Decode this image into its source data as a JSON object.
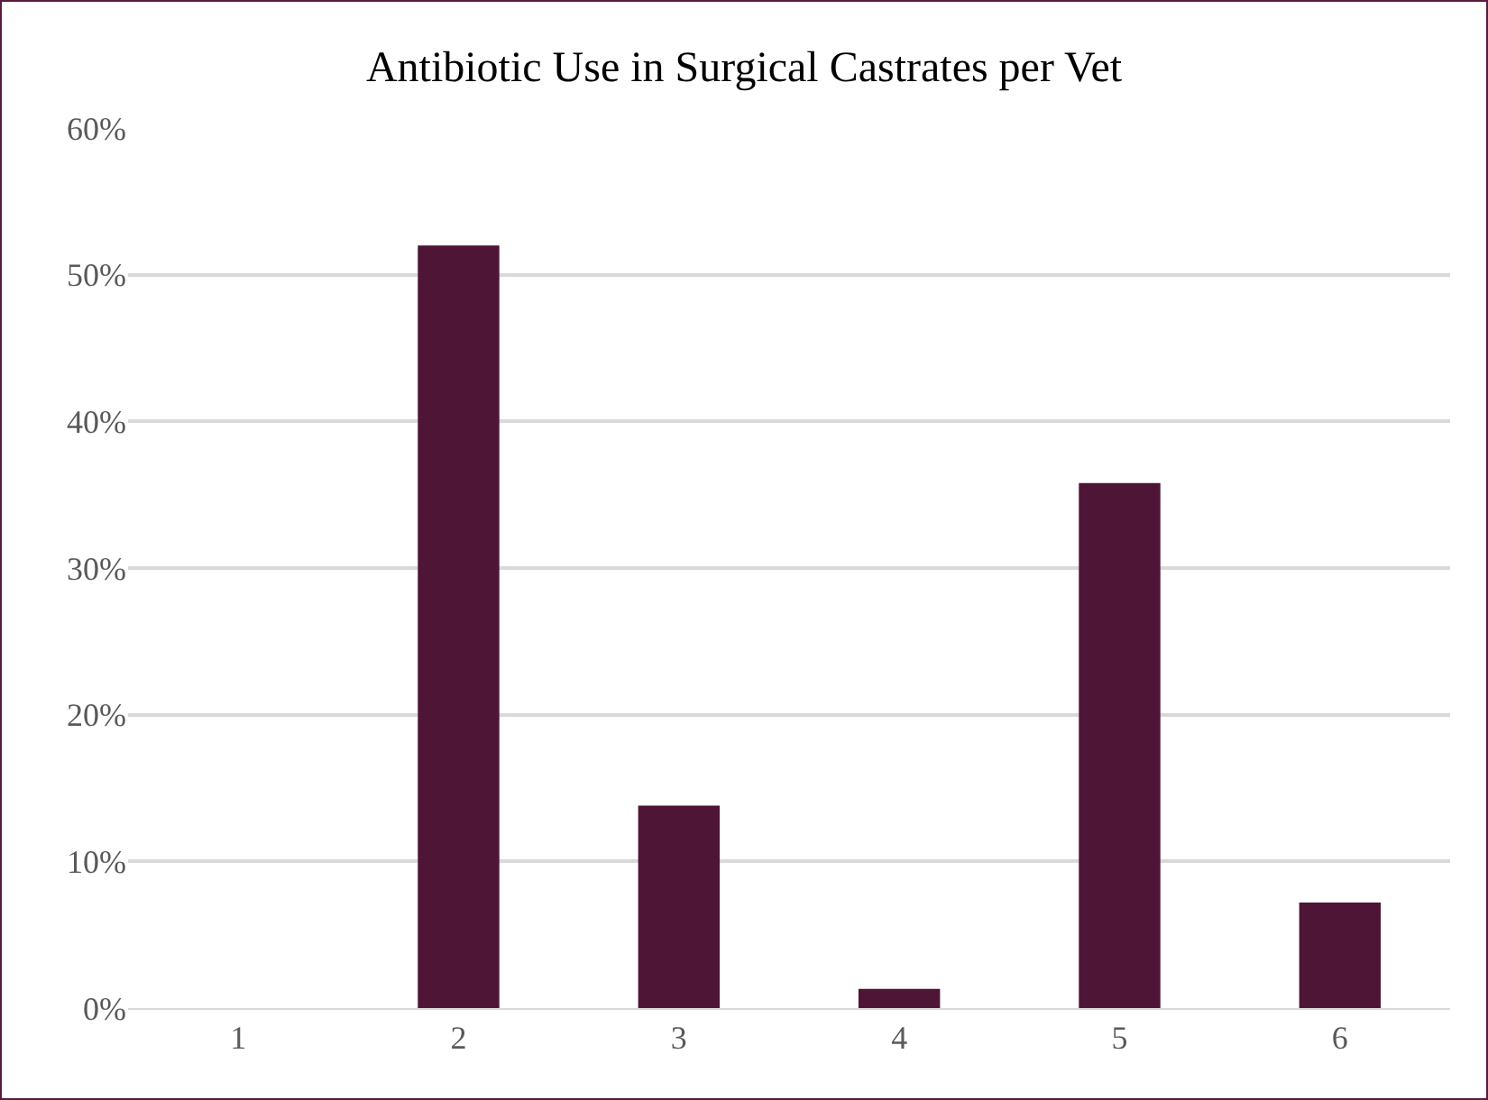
{
  "chart_data": {
    "type": "bar",
    "title": "Antibiotic Use in Surgical Castrates per Vet",
    "categories": [
      "1",
      "2",
      "3",
      "4",
      "5",
      "6"
    ],
    "values": [
      0,
      52,
      13.8,
      1.3,
      35.8,
      7.2
    ],
    "color": "#4e1536",
    "ylim": [
      0,
      60
    ],
    "yticks": [
      {
        "value": 0,
        "label": "0%"
      },
      {
        "value": 10,
        "label": "10%"
      },
      {
        "value": 20,
        "label": "20%"
      },
      {
        "value": 30,
        "label": "30%"
      },
      {
        "value": 40,
        "label": "40%"
      },
      {
        "value": 50,
        "label": "50%"
      },
      {
        "value": 60,
        "label": "60%"
      }
    ],
    "grid": "y"
  }
}
